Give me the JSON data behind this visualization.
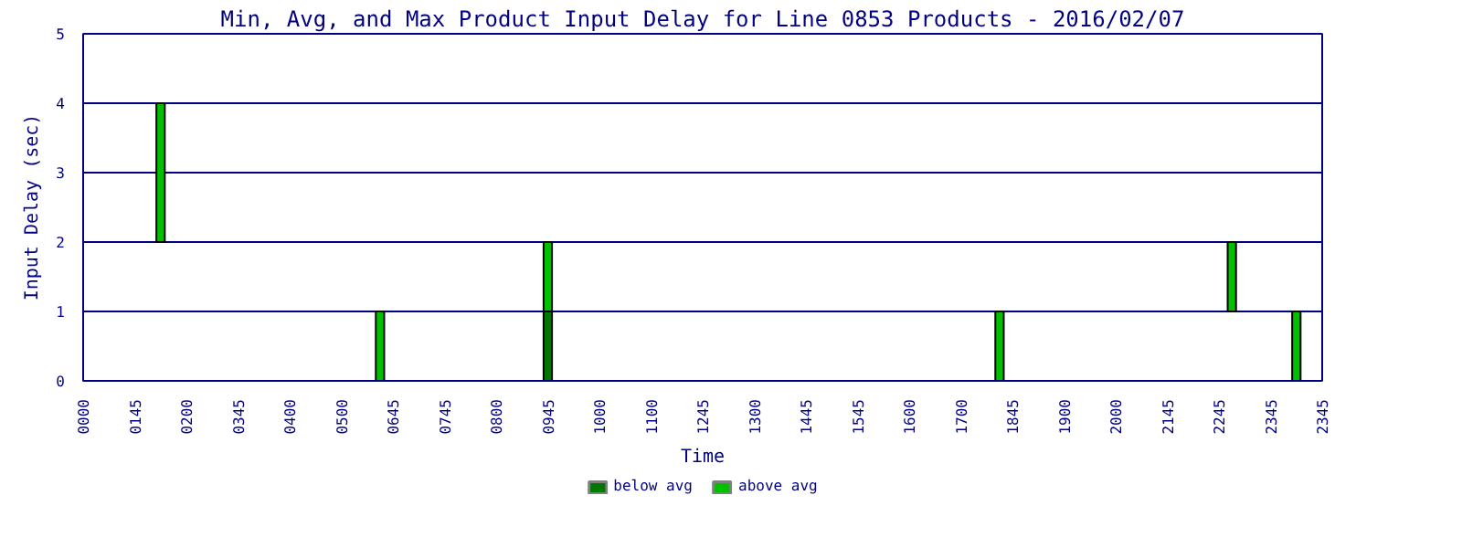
{
  "chart_data": {
    "type": "bar",
    "title": "Min, Avg, and Max Product Input Delay for Line 0853 Products - 2016/02/07",
    "xlabel": "Time",
    "ylabel": "Input Delay (sec)",
    "categories": [
      "0000",
      null,
      null,
      null,
      "0145",
      null,
      null,
      null,
      "0200",
      null,
      null,
      null,
      "0345",
      null,
      null,
      null,
      "0400",
      null,
      null,
      null,
      "0500",
      null,
      null,
      null,
      "0645",
      null,
      null,
      null,
      "0745",
      null,
      null,
      null,
      "0800",
      null,
      null,
      null,
      "0945",
      null,
      null,
      null,
      "1000",
      null,
      null,
      null,
      "1100",
      null,
      null,
      null,
      "1245",
      null,
      null,
      null,
      "1300",
      null,
      null,
      null,
      "1445",
      null,
      null,
      null,
      "1545",
      null,
      null,
      null,
      "1600",
      null,
      null,
      null,
      "1700",
      null,
      null,
      null,
      "1845",
      null,
      null,
      null,
      "1900",
      null,
      null,
      null,
      "2000",
      null,
      null,
      null,
      "2145",
      null,
      null,
      null,
      "2245",
      null,
      null,
      null,
      "2345",
      null,
      null,
      null,
      "2345"
    ],
    "series": [
      {
        "name": "below avg",
        "color": "#007800",
        "values": [
          null,
          null,
          null,
          null,
          null,
          null,
          null,
          null,
          null,
          null,
          null,
          null,
          null,
          null,
          null,
          null,
          null,
          null,
          null,
          null,
          null,
          null,
          null,
          null,
          null,
          null,
          null,
          null,
          null,
          null,
          null,
          null,
          null,
          null,
          null,
          null,
          1,
          null,
          null,
          null,
          null,
          null,
          null,
          null,
          null,
          null,
          null,
          null,
          null,
          null,
          null,
          null,
          null,
          null,
          null,
          null,
          null,
          null,
          null,
          null,
          null,
          null,
          null,
          null,
          null,
          null,
          null,
          null,
          null,
          null,
          null,
          null,
          null,
          null,
          null,
          null,
          null,
          null,
          null,
          null,
          null,
          null,
          null,
          null,
          null,
          null,
          null,
          null,
          null,
          null,
          null,
          null,
          null,
          null,
          null,
          null,
          null
        ]
      },
      {
        "name": "above avg",
        "color": "#00c000",
        "base": [
          null,
          null,
          null,
          null,
          null,
          null,
          2,
          null,
          null,
          null,
          null,
          null,
          null,
          null,
          null,
          null,
          null,
          null,
          null,
          null,
          null,
          null,
          null,
          0,
          null,
          null,
          null,
          null,
          null,
          null,
          null,
          null,
          null,
          null,
          null,
          null,
          1,
          null,
          null,
          null,
          null,
          null,
          null,
          null,
          null,
          null,
          null,
          null,
          null,
          null,
          null,
          null,
          null,
          null,
          null,
          null,
          null,
          null,
          null,
          null,
          null,
          null,
          null,
          null,
          null,
          null,
          null,
          null,
          null,
          null,
          null,
          0,
          null,
          null,
          null,
          null,
          null,
          null,
          null,
          null,
          null,
          null,
          null,
          null,
          null,
          null,
          null,
          null,
          null,
          1,
          null,
          null,
          null,
          null,
          0,
          null,
          null
        ],
        "values": [
          null,
          null,
          null,
          null,
          null,
          null,
          2,
          null,
          null,
          null,
          null,
          null,
          null,
          null,
          null,
          null,
          null,
          null,
          null,
          null,
          null,
          null,
          null,
          1,
          null,
          null,
          null,
          null,
          null,
          null,
          null,
          null,
          null,
          null,
          null,
          null,
          1,
          null,
          null,
          null,
          null,
          null,
          null,
          null,
          null,
          null,
          null,
          null,
          null,
          null,
          null,
          null,
          null,
          null,
          null,
          null,
          null,
          null,
          null,
          null,
          null,
          null,
          null,
          null,
          null,
          null,
          null,
          null,
          null,
          null,
          null,
          1,
          null,
          null,
          null,
          null,
          null,
          null,
          null,
          null,
          null,
          null,
          null,
          null,
          null,
          null,
          null,
          null,
          null,
          1,
          null,
          null,
          null,
          null,
          1,
          null,
          null
        ]
      }
    ],
    "ylim": [
      0,
      5
    ],
    "yticks": [
      0,
      1,
      2,
      3,
      4,
      5
    ],
    "grid": "y",
    "legend": "bottom"
  }
}
